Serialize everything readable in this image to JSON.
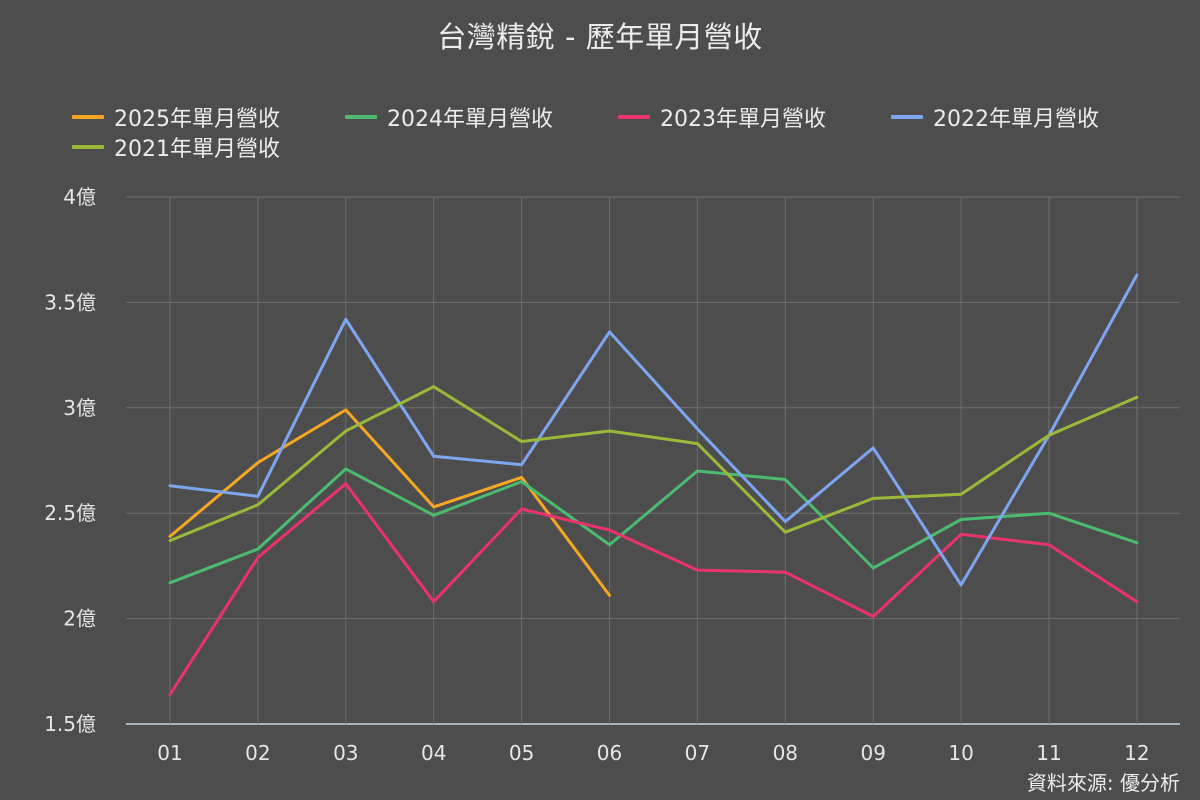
{
  "chart_data": {
    "type": "line",
    "title": "台灣精銳 - 歷年單月營收",
    "categories": [
      "01",
      "02",
      "03",
      "04",
      "05",
      "06",
      "07",
      "08",
      "09",
      "10",
      "11",
      "12"
    ],
    "y_ticks": [
      "1.5億",
      "2億",
      "2.5億",
      "3億",
      "3.5億",
      "4億"
    ],
    "y_tick_values": [
      1.5,
      2,
      2.5,
      3,
      3.5,
      4
    ],
    "ylim": [
      1.5,
      4
    ],
    "grid": true,
    "legend_position": "top",
    "series": [
      {
        "name": "2025年單月營收",
        "color": "#f5a623",
        "values": [
          2.39,
          2.74,
          2.99,
          2.53,
          2.67,
          2.11,
          null,
          null,
          null,
          null,
          null,
          null
        ]
      },
      {
        "name": "2024年單月營收",
        "color": "#4cbb70",
        "values": [
          2.17,
          2.33,
          2.71,
          2.49,
          2.65,
          2.35,
          2.7,
          2.66,
          2.24,
          2.47,
          2.5,
          2.36
        ]
      },
      {
        "name": "2023年單月營收",
        "color": "#e8336b",
        "values": [
          1.64,
          2.29,
          2.64,
          2.08,
          2.52,
          2.42,
          2.23,
          2.22,
          2.01,
          2.4,
          2.35,
          2.08
        ]
      },
      {
        "name": "2022年單月營收",
        "color": "#7ea6f0",
        "values": [
          2.63,
          2.58,
          3.42,
          2.77,
          2.73,
          3.36,
          2.9,
          2.46,
          2.81,
          2.16,
          2.87,
          3.63
        ]
      },
      {
        "name": "2021年單月營收",
        "color": "#9ab83a",
        "values": [
          2.37,
          2.54,
          2.89,
          3.1,
          2.84,
          2.89,
          2.83,
          2.41,
          2.57,
          2.59,
          2.87,
          3.05
        ]
      }
    ]
  },
  "source_note": "資料來源: 優分析"
}
